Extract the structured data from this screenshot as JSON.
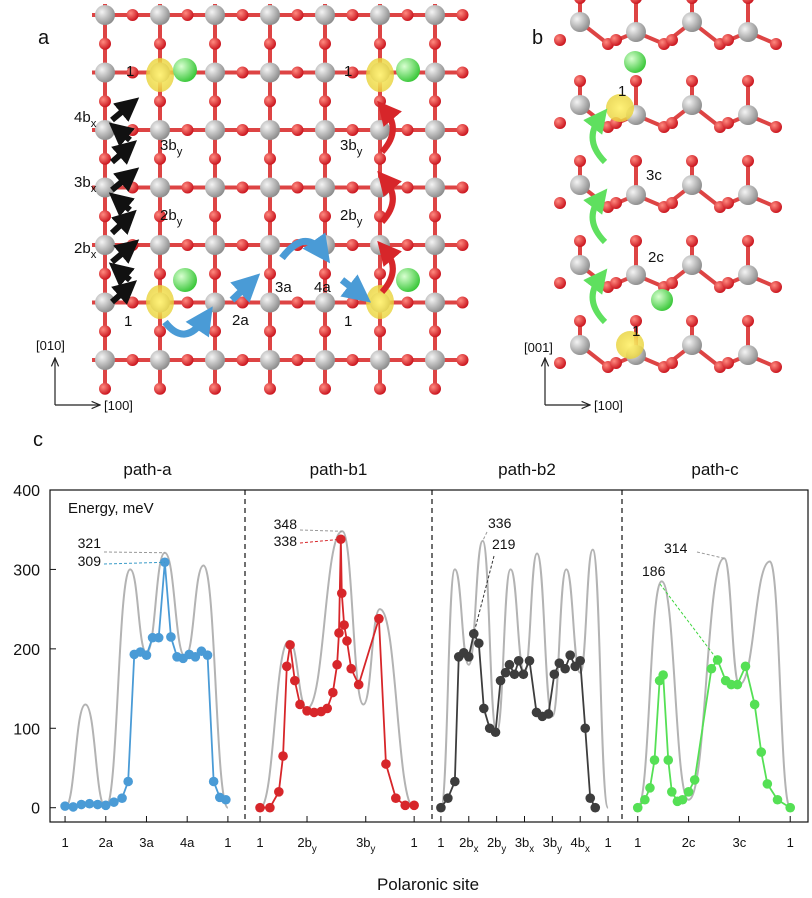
{
  "structure_a": {
    "label": "a",
    "sites": [
      {
        "text": "1"
      },
      {
        "text": "4b",
        "sub": "x"
      },
      {
        "text": "3b",
        "sub": "y"
      },
      {
        "text": "3b",
        "sub": "x"
      },
      {
        "text": "2b",
        "sub": "y"
      },
      {
        "text": "2b",
        "sub": "x"
      },
      {
        "text": "1"
      },
      {
        "text": "2a"
      },
      {
        "text": "3a"
      },
      {
        "text": "4a"
      },
      {
        "text": "1"
      },
      {
        "text": "3b",
        "sub": "y"
      },
      {
        "text": "2b",
        "sub": "y"
      },
      {
        "text": "1"
      }
    ],
    "axes": [
      "[010]",
      "[100]"
    ]
  },
  "structure_b": {
    "label": "b",
    "sites": [
      {
        "text": "1"
      },
      {
        "text": "3c"
      },
      {
        "text": "2c"
      },
      {
        "text": "1"
      }
    ],
    "axes": [
      "[001]",
      "[100]"
    ]
  },
  "figure": {
    "panel_label": "c",
    "xlabel": "Polaronic site"
  },
  "chart_data": [
    {
      "type": "line",
      "title": "path-a",
      "title_color": "#4a9bd6",
      "ylabel": "Energy, meV",
      "xlim": [
        -0.37,
        4.42
      ],
      "ylim": [
        -18,
        400
      ],
      "yticks": [
        0,
        100,
        200,
        300,
        400
      ],
      "xticks": [
        {
          "value": 0,
          "label": "1"
        },
        {
          "value": 1,
          "label": "2a"
        },
        {
          "value": 2,
          "label": "3a"
        },
        {
          "value": 3,
          "label": "4a"
        },
        {
          "value": 4,
          "label": "1"
        }
      ],
      "series": [
        {
          "color": "#b3b3b3",
          "label_color": "#999999",
          "curve": "smooth",
          "peak_label": 321,
          "x": [
            0,
            0.5,
            1,
            1.6,
            2,
            2.45,
            2.95,
            3.4,
            4
          ],
          "values": [
            0,
            130,
            0,
            300,
            195,
            321,
            190,
            305,
            0
          ]
        },
        {
          "color": "#4a9bd6",
          "label_color": "#3a9bc8",
          "curve": "markers",
          "peak_label": 309,
          "x": [
            0,
            0.2,
            0.4,
            0.6,
            0.8,
            1.0,
            1.2,
            1.4,
            1.55,
            1.7,
            1.85,
            2.0,
            2.15,
            2.3,
            2.45,
            2.6,
            2.75,
            2.9,
            3.05,
            3.2,
            3.35,
            3.5,
            3.65,
            3.8,
            3.95
          ],
          "values": [
            2,
            1,
            4,
            5,
            4,
            3,
            7,
            12,
            33,
            193,
            196,
            192,
            214,
            214,
            309,
            215,
            190,
            188,
            193,
            190,
            197,
            192,
            33,
            13,
            10
          ]
        }
      ]
    },
    {
      "type": "line",
      "title": "path-b1",
      "title_color": "#d42a2a",
      "xlim": [
        -0.32,
        3.66
      ],
      "ylim": [
        -18,
        400
      ],
      "xticks": [
        {
          "value": 0,
          "label": "1"
        },
        {
          "value": 1,
          "label": "2b",
          "sub": "y"
        },
        {
          "value": 2.25,
          "label": "3b",
          "sub": "y"
        },
        {
          "value": 3.28,
          "label": "1"
        }
      ],
      "series": [
        {
          "color": "#b3b3b3",
          "label_color": "#999999",
          "curve": "smooth",
          "peak_label": 348,
          "x": [
            0,
            0.62,
            1,
            1.75,
            2.2,
            2.55,
            3.28
          ],
          "values": [
            0,
            210,
            125,
            348,
            130,
            250,
            0
          ]
        },
        {
          "color": "#d7262a",
          "label_color": "#d7262a",
          "curve": "markers",
          "peak_label": 338,
          "x": [
            0,
            0.21,
            0.4,
            0.49,
            0.57,
            0.64,
            0.74,
            0.85,
            1.0,
            1.15,
            1.3,
            1.43,
            1.55,
            1.64,
            1.68,
            1.72,
            1.74,
            1.79,
            1.85,
            1.94,
            2.1,
            2.53,
            2.68,
            2.89,
            3.09,
            3.28
          ],
          "values": [
            0,
            0,
            20,
            65,
            178,
            205,
            160,
            130,
            122,
            120,
            121,
            125,
            145,
            180,
            220,
            338,
            270,
            230,
            210,
            175,
            155,
            238,
            55,
            12,
            3,
            3
          ]
        }
      ]
    },
    {
      "type": "line",
      "title": "path-b2",
      "title_color": "#4d4d4d",
      "xlim": [
        -0.32,
        6.5
      ],
      "ylim": [
        -18,
        400
      ],
      "xticks": [
        {
          "value": 0,
          "label": "1"
        },
        {
          "value": 1,
          "label": "2b",
          "sub": "x"
        },
        {
          "value": 2,
          "label": "2b",
          "sub": "y"
        },
        {
          "value": 3,
          "label": "3b",
          "sub": "x"
        },
        {
          "value": 4,
          "label": "3b",
          "sub": "y"
        },
        {
          "value": 5,
          "label": "4b",
          "sub": "x"
        },
        {
          "value": 6,
          "label": "1"
        }
      ],
      "series": [
        {
          "color": "#b3b3b3",
          "label_color": "#999999",
          "curve": "smooth",
          "peak_label": 336,
          "x": [
            0,
            0.5,
            1,
            1.5,
            2,
            2.5,
            3,
            3.45,
            4,
            4.5,
            5,
            5.45,
            6
          ],
          "values": [
            0,
            300,
            180,
            336,
            95,
            300,
            170,
            320,
            115,
            300,
            170,
            325,
            0
          ]
        },
        {
          "color": "#3d3d3d",
          "label_color": "#333333",
          "curve": "markers",
          "peak_label": 219,
          "x": [
            0,
            0.25,
            0.5,
            0.64,
            0.82,
            1.0,
            1.18,
            1.36,
            1.54,
            1.75,
            1.96,
            2.14,
            2.32,
            2.46,
            2.64,
            2.79,
            2.96,
            3.18,
            3.43,
            3.64,
            3.86,
            4.07,
            4.25,
            4.46,
            4.64,
            4.82,
            5.0,
            5.18,
            5.36,
            5.54
          ],
          "values": [
            0,
            12,
            33,
            190,
            195,
            190,
            219,
            207,
            125,
            100,
            95,
            160,
            170,
            180,
            168,
            185,
            168,
            185,
            120,
            115,
            118,
            168,
            182,
            175,
            192,
            178,
            185,
            100,
            12,
            0
          ]
        }
      ]
    },
    {
      "type": "line",
      "title": "path-c",
      "title_color": "#5fe05f",
      "xlim": [
        -0.31,
        3.35
      ],
      "ylim": [
        -18,
        400
      ],
      "xticks": [
        {
          "value": 0,
          "label": "1"
        },
        {
          "value": 1,
          "label": "2c"
        },
        {
          "value": 2,
          "label": "3c"
        },
        {
          "value": 3,
          "label": "1"
        }
      ],
      "series": [
        {
          "color": "#b3b3b3",
          "label_color": "#999999",
          "curve": "smooth",
          "peak_label": 314,
          "x": [
            0,
            0.47,
            1,
            1.7,
            2,
            2.6,
            3
          ],
          "values": [
            0,
            285,
            10,
            314,
            155,
            310,
            0
          ]
        },
        {
          "color": "#55e055",
          "label_color": "#3fd63f",
          "curve": "markers",
          "peak_label": 186,
          "x": [
            0,
            0.14,
            0.24,
            0.33,
            0.43,
            0.5,
            0.6,
            0.67,
            0.78,
            0.88,
            1.0,
            1.12,
            1.45,
            1.57,
            1.73,
            1.84,
            1.96,
            2.12,
            2.3,
            2.43,
            2.55,
            2.75,
            3.0
          ],
          "values": [
            0,
            10,
            25,
            60,
            160,
            167,
            60,
            20,
            8,
            10,
            20,
            35,
            175,
            186,
            160,
            155,
            155,
            178,
            130,
            70,
            30,
            10,
            0
          ]
        }
      ]
    }
  ]
}
